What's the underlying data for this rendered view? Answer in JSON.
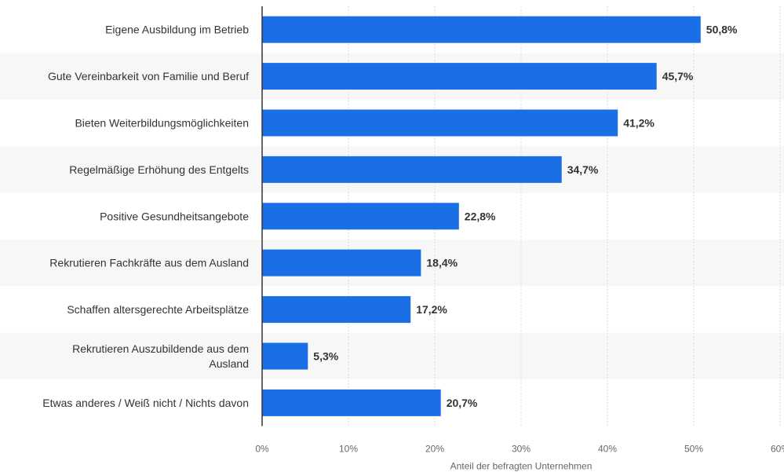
{
  "chart_data": {
    "type": "bar",
    "orientation": "horizontal",
    "categories": [
      "Eigene Ausbildung im Betrieb",
      "Gute Vereinbarkeit von Familie und Beruf",
      "Bieten Weiterbildungsmöglichkeiten",
      "Regelmäßige Erhöhung des Entgelts",
      "Positive Gesundheitsangebote",
      "Rekrutieren Fachkräfte aus dem Ausland",
      "Schaffen altersgerechte Arbeitsplätze",
      "Rekrutieren Auszubildende aus dem Ausland",
      "Etwas anderes / Weiß nicht / Nichts davon"
    ],
    "category_lines": [
      [
        "Eigene Ausbildung im Betrieb"
      ],
      [
        "Gute Vereinbarkeit von Familie und Beruf"
      ],
      [
        "Bieten Weiterbildungsmöglichkeiten"
      ],
      [
        "Regelmäßige Erhöhung des Entgelts"
      ],
      [
        "Positive Gesundheitsangebote"
      ],
      [
        "Rekrutieren Fachkräfte aus dem Ausland"
      ],
      [
        "Schaffen altersgerechte Arbeitsplätze"
      ],
      [
        "Rekrutieren Auszubildende aus dem",
        "Ausland"
      ],
      [
        "Etwas anderes / Weiß nicht / Nichts davon"
      ]
    ],
    "values": [
      50.8,
      45.7,
      41.2,
      34.7,
      22.8,
      18.4,
      17.2,
      5.3,
      20.7
    ],
    "value_labels": [
      "50,8%",
      "45,7%",
      "41,2%",
      "34,7%",
      "22,8%",
      "18,4%",
      "17,2%",
      "5,3%",
      "20,7%"
    ],
    "xlim": [
      0,
      60
    ],
    "x_ticks": [
      0,
      10,
      20,
      30,
      40,
      50,
      60
    ],
    "x_tick_labels": [
      "0%",
      "10%",
      "20%",
      "30%",
      "40%",
      "50%",
      "60%"
    ],
    "xlabel": "Anteil der befragten Unternehmen",
    "ylabel": "",
    "title": "",
    "grid": true,
    "colors": {
      "bar": "#1a6ee6",
      "grid": "#dcdcdc",
      "axis": "#333333",
      "band": "#f7f7f7"
    }
  }
}
